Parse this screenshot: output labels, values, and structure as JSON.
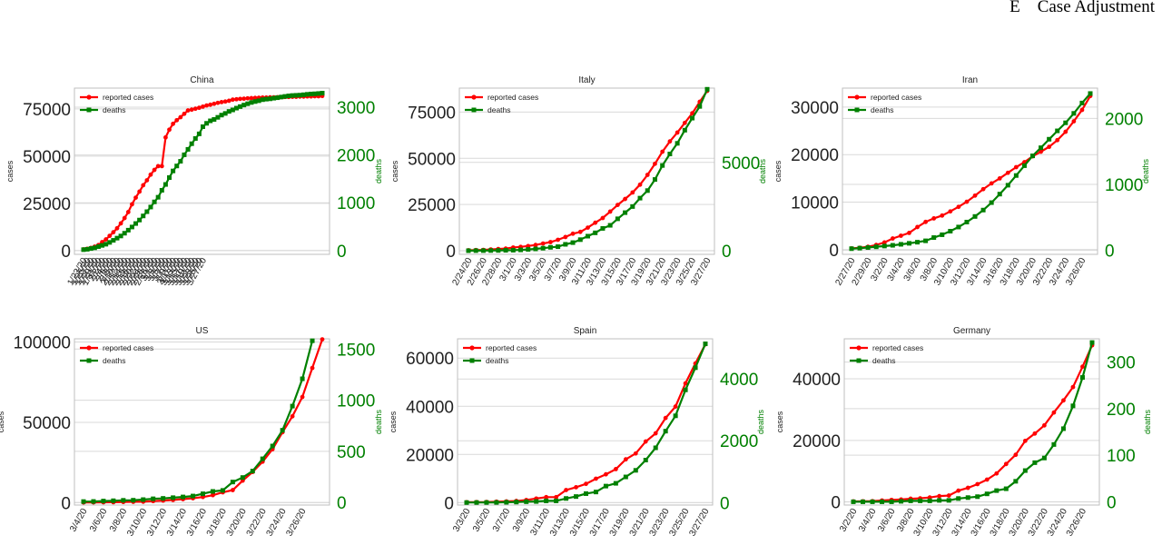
{
  "header": {
    "section_letter": "E",
    "section_title": "Case Adjustment"
  },
  "colors": {
    "cases": "#ff0000",
    "deaths": "#008000",
    "grid": "#d9d9d9",
    "axis": "#bfbfbf"
  },
  "legend": {
    "cases_label": "reported cases",
    "deaths_label": "deaths"
  },
  "axis_labels": {
    "left": "cases",
    "right": "deaths"
  },
  "chart_data": [
    {
      "type": "line",
      "title": "China",
      "legend": "top-left",
      "grid": true,
      "x_labels": [
        "1/23/20",
        "1/25/20",
        "1/27/20",
        "1/29/20",
        "1/31/20",
        "2/2/20",
        "2/4/20",
        "2/6/20",
        "2/8/20",
        "2/10/20",
        "2/12/20",
        "2/14/20",
        "2/16/20",
        "2/18/20",
        "2/20/20",
        "2/22/20",
        "2/24/20",
        "2/26/20",
        "2/28/20",
        "3/1/20",
        "3/3/20",
        "3/5/20",
        "3/7/20",
        "3/9/20",
        "3/11/20",
        "3/13/20",
        "3/15/20",
        "3/17/20",
        "3/19/20",
        "3/21/20",
        "3/23/20",
        "3/25/20",
        "3/27/20"
      ],
      "x_label_every": 1,
      "ylim_left": [
        -2000,
        86000
      ],
      "yticks_left": [
        0,
        25000,
        50000,
        75000
      ],
      "ylim_right": [
        -80,
        3400
      ],
      "yticks_right": [
        0,
        1000,
        2000,
        3000
      ],
      "series": [
        {
          "name": "reported cases",
          "axis": "left",
          "values": [
            640,
            920,
            1400,
            2100,
            2900,
            4500,
            5900,
            7800,
            9700,
            11800,
            14400,
            17200,
            20400,
            24500,
            28000,
            31200,
            34600,
            37200,
            40200,
            42700,
            44700,
            44700,
            59900,
            64000,
            67100,
            69000,
            70600,
            72400,
            74200,
            74600,
            75100,
            75600,
            76200,
            76800,
            77200,
            77700,
            78200,
            78600,
            78900,
            79300,
            79900,
            80100,
            80300,
            80400,
            80600,
            80700,
            80800,
            80900,
            81000,
            81000,
            81100,
            81100,
            81200,
            81200,
            81300,
            81300,
            81400,
            81400,
            81500,
            81500,
            81600,
            81600,
            81700,
            81700,
            81800
          ]
        },
        {
          "name": "deaths",
          "axis": "right",
          "values": [
            18,
            26,
            42,
            56,
            82,
            107,
            132,
            170,
            213,
            259,
            304,
            362,
            426,
            492,
            565,
            638,
            724,
            813,
            910,
            1018,
            1115,
            1261,
            1383,
            1527,
            1666,
            1770,
            1868,
            2004,
            2118,
            2236,
            2345,
            2442,
            2592,
            2663,
            2715,
            2744,
            2788,
            2835,
            2870,
            2912,
            2943,
            2981,
            3013,
            3045,
            3073,
            3099,
            3119,
            3136,
            3158,
            3169,
            3176,
            3189,
            3199,
            3213,
            3226,
            3237,
            3245,
            3249,
            3253,
            3261,
            3270,
            3277,
            3281,
            3287,
            3295
          ]
        }
      ]
    },
    {
      "type": "line",
      "title": "Italy",
      "legend": "top-left",
      "grid": true,
      "x_labels": [
        "2/24/20",
        "2/26/20",
        "2/28/20",
        "3/1/20",
        "3/3/20",
        "3/5/20",
        "3/7/20",
        "3/9/20",
        "3/11/20",
        "3/13/20",
        "3/15/20",
        "3/17/20",
        "3/19/20",
        "3/21/20",
        "3/23/20",
        "3/25/20",
        "3/27/20"
      ],
      "x_label_every": 2,
      "ylim_left": [
        -2000,
        88000
      ],
      "yticks_left": [
        0,
        25000,
        50000,
        75000
      ],
      "ylim_right": [
        -200,
        9200
      ],
      "yticks_right": [
        0,
        5000
      ],
      "series": [
        {
          "name": "reported cases",
          "axis": "left",
          "values": [
            229,
            322,
            400,
            650,
            888,
            1128,
            1694,
            2036,
            2502,
            3089,
            3858,
            4636,
            5883,
            7375,
            9172,
            10149,
            12462,
            15113,
            17660,
            21157,
            24747,
            27980,
            31506,
            35713,
            41035,
            47021,
            53578,
            59138,
            63927,
            69176,
            74386,
            80589,
            86498
          ]
        },
        {
          "name": "deaths",
          "axis": "right",
          "values": [
            7,
            11,
            12,
            17,
            21,
            29,
            34,
            52,
            79,
            107,
            148,
            197,
            233,
            366,
            463,
            631,
            827,
            1016,
            1266,
            1441,
            1809,
            2158,
            2503,
            2978,
            3405,
            4032,
            4825,
            5476,
            6077,
            6820,
            7503,
            8165,
            9134
          ]
        }
      ]
    },
    {
      "type": "line",
      "title": "Iran",
      "legend": "top-left",
      "grid": true,
      "x_labels": [
        "2/27/20",
        "2/29/20",
        "3/2/20",
        "3/4/20",
        "3/6/20",
        "3/8/20",
        "3/10/20",
        "3/12/20",
        "3/14/20",
        "3/16/20",
        "3/18/20",
        "3/20/20",
        "3/22/20",
        "3/24/20",
        "3/26/20"
      ],
      "x_label_every": 2,
      "ylim_left": [
        -1000,
        34000
      ],
      "yticks_left": [
        0,
        10000,
        20000,
        30000
      ],
      "ylim_right": [
        -60,
        2460
      ],
      "yticks_right": [
        0,
        1000,
        2000
      ],
      "series": [
        {
          "name": "reported cases",
          "axis": "left",
          "values": [
            245,
            388,
            593,
            978,
            1501,
            2336,
            2922,
            3513,
            4747,
            5823,
            6566,
            7161,
            8042,
            9000,
            10075,
            11364,
            12729,
            13938,
            14991,
            16169,
            17361,
            18407,
            19644,
            20610,
            21638,
            23049,
            24811,
            27017,
            29406,
            32332
          ]
        },
        {
          "name": "deaths",
          "axis": "right",
          "values": [
            26,
            34,
            43,
            54,
            66,
            77,
            92,
            107,
            124,
            145,
            194,
            237,
            291,
            354,
            429,
            514,
            611,
            724,
            853,
            988,
            1135,
            1284,
            1433,
            1556,
            1685,
            1812,
            1934,
            2077,
            2234,
            2378
          ]
        }
      ]
    },
    {
      "type": "line",
      "title": "US",
      "legend": "top-left",
      "grid": true,
      "x_labels": [
        "3/4/20",
        "3/6/20",
        "3/8/20",
        "3/10/20",
        "3/12/20",
        "3/14/20",
        "3/16/20",
        "3/18/20",
        "3/20/20",
        "3/22/20",
        "3/24/20",
        "3/26/20"
      ],
      "x_label_every": 2,
      "ylim_left": [
        -1500,
        102000
      ],
      "yticks_left": [
        0,
        50000,
        100000
      ],
      "ylim_right": [
        -25,
        1600
      ],
      "yticks_right": [
        0,
        500,
        1000,
        1500
      ],
      "series": [
        {
          "name": "reported cases",
          "axis": "left",
          "values": [
            118,
            149,
            217,
            262,
            402,
            518,
            583,
            959,
            1281,
            1663,
            2179,
            2727,
            3499,
            4632,
            6421,
            7786,
            13680,
            19101,
            25493,
            33276,
            43847,
            53740,
            65778,
            83836,
            101657
          ]
        },
        {
          "name": "deaths",
          "axis": "right",
          "values": [
            9,
            10,
            14,
            17,
            21,
            22,
            28,
            36,
            40,
            47,
            54,
            63,
            85,
            108,
            118,
            200,
            244,
            307,
            427,
            552,
            706,
            942,
            1209,
            1581
          ]
        }
      ]
    },
    {
      "type": "line",
      "title": "Spain",
      "legend": "top-left",
      "grid": true,
      "x_labels": [
        "3/3/20",
        "3/5/20",
        "3/7/20",
        "3/9/20",
        "3/11/20",
        "3/13/20",
        "3/15/20",
        "3/17/20",
        "3/19/20",
        "3/21/20",
        "3/23/20",
        "3/25/20",
        "3/27/20"
      ],
      "x_label_every": 2,
      "ylim_left": [
        -1000,
        68000
      ],
      "yticks_left": [
        0,
        20000,
        40000,
        60000
      ],
      "ylim_right": [
        -80,
        5300
      ],
      "yticks_right": [
        0,
        2000,
        4000
      ],
      "series": [
        {
          "name": "reported cases",
          "axis": "left",
          "values": [
            165,
            222,
            259,
            400,
            500,
            673,
            1073,
            1695,
            2277,
            2277,
            5232,
            6391,
            7798,
            9942,
            11748,
            13910,
            17963,
            20410,
            25374,
            28768,
            35136,
            39885,
            49515,
            57786,
            65719
          ]
        },
        {
          "name": "deaths",
          "axis": "right",
          "values": [
            1,
            2,
            3,
            5,
            10,
            17,
            28,
            35,
            54,
            55,
            133,
            195,
            289,
            342,
            533,
            623,
            830,
            1043,
            1375,
            1772,
            2311,
            2808,
            3647,
            4365,
            5138
          ]
        }
      ]
    },
    {
      "type": "line",
      "title": "Germany",
      "legend": "top-left",
      "grid": true,
      "x_labels": [
        "3/2/20",
        "3/4/20",
        "3/6/20",
        "3/8/20",
        "3/10/20",
        "3/12/20",
        "3/14/20",
        "3/16/20",
        "3/18/20",
        "3/20/20",
        "3/22/20",
        "3/24/20",
        "3/26/20"
      ],
      "x_label_every": 2,
      "ylim_left": [
        -1000,
        53000
      ],
      "yticks_left": [
        0,
        20000,
        40000
      ],
      "ylim_right": [
        -7,
        350
      ],
      "yticks_right": [
        0,
        100,
        200,
        300
      ],
      "series": [
        {
          "name": "reported cases",
          "axis": "left",
          "values": [
            159,
            196,
            262,
            482,
            670,
            799,
            1040,
            1176,
            1457,
            1908,
            2078,
            3675,
            4585,
            5795,
            7272,
            9257,
            12327,
            15320,
            19848,
            22213,
            24873,
            29056,
            32986,
            37323,
            43938,
            50871
          ]
        },
        {
          "name": "deaths",
          "axis": "right",
          "values": [
            0,
            0,
            0,
            0,
            0,
            1,
            2,
            2,
            2,
            3,
            3,
            7,
            9,
            11,
            17,
            24,
            28,
            44,
            67,
            84,
            94,
            123,
            157,
            206,
            267,
            342
          ]
        }
      ]
    }
  ]
}
